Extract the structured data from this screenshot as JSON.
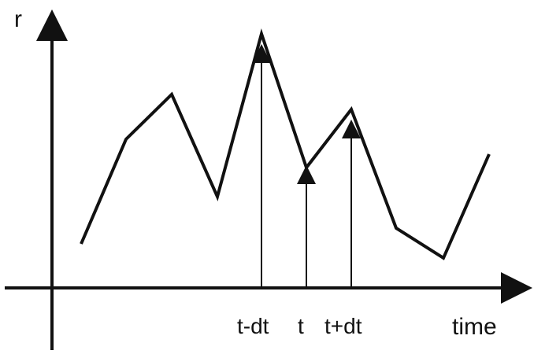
{
  "axes": {
    "y_label": "r",
    "x_label": "time"
  },
  "signal": {
    "description_points": [
      {
        "t": 1,
        "r": 3
      },
      {
        "t": 2,
        "r": 6
      },
      {
        "t": 3,
        "r": 7
      },
      {
        "t": 4,
        "r": 4
      },
      {
        "t": 5,
        "r": 9
      },
      {
        "t": 6,
        "r": 5
      },
      {
        "t": 7,
        "r": 7
      },
      {
        "t": 8,
        "r": 2
      },
      {
        "t": 9,
        "r": 1
      },
      {
        "t": 10,
        "r": 6
      }
    ]
  },
  "markers": [
    {
      "label": "t-dt"
    },
    {
      "label": "t"
    },
    {
      "label": "t+dt"
    }
  ],
  "colors": {
    "ink": "#111111",
    "background": "#ffffff"
  }
}
